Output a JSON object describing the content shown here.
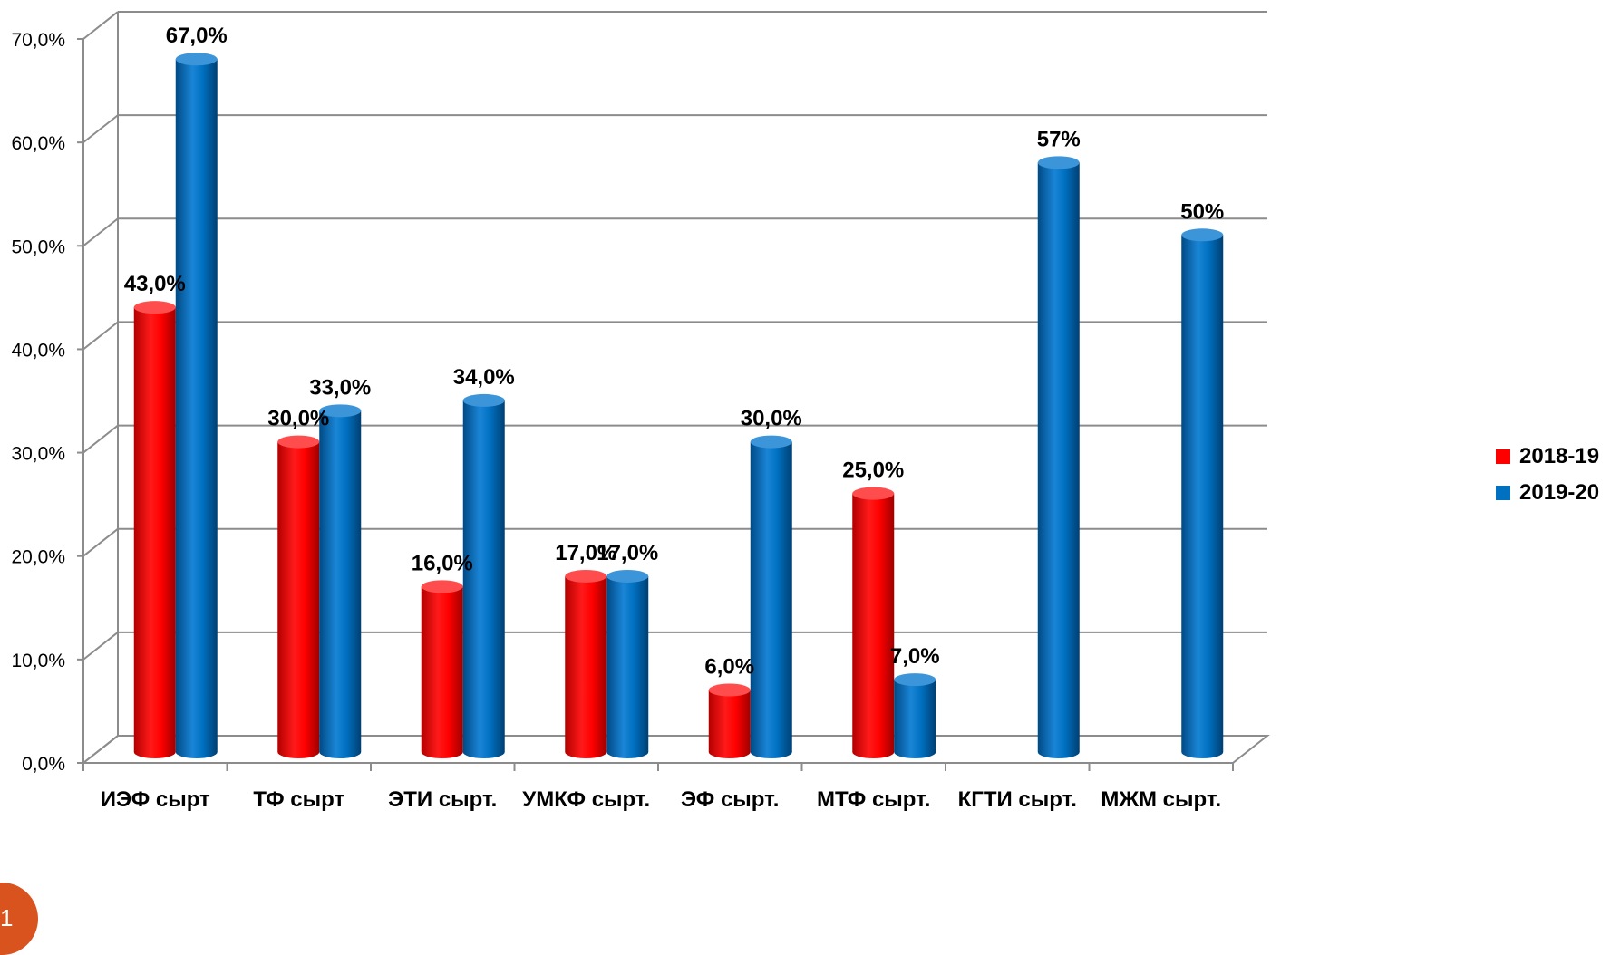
{
  "chart_data": {
    "type": "bar",
    "categories": [
      "ИЭФ сырт",
      "ТФ сырт",
      "ЭТИ сырт.",
      "УМКФ сырт.",
      "ЭФ сырт.",
      "МТФ сырт.",
      "КГТИ сырт.",
      "МЖМ сырт."
    ],
    "series": [
      {
        "name": "2018-19",
        "color": "#ff0000",
        "values": [
          43.0,
          30.0,
          16.0,
          17.0,
          6.0,
          25.0,
          null,
          null
        ],
        "labels": [
          "43,0%",
          "30,0%",
          "16,0%",
          "17,0%",
          "6,0%",
          "25,0%",
          "",
          ""
        ]
      },
      {
        "name": "2019-20",
        "color": "#0070c0",
        "values": [
          67.0,
          33.0,
          34.0,
          17.0,
          30.0,
          7.0,
          57.0,
          50.0
        ],
        "labels": [
          "67,0%",
          "33,0%",
          "34,0%",
          "17,0%",
          "30,0%",
          "7,0%",
          "57%",
          "50%"
        ]
      }
    ],
    "y_ticks": [
      "0,0%",
      "10,0%",
      "20,0%",
      "30,0%",
      "40,0%",
      "50,0%",
      "60,0%",
      "70,0%"
    ],
    "ylim": [
      0,
      70
    ],
    "grid": true,
    "legend_position": "right",
    "title": "",
    "xlabel": "",
    "ylabel": ""
  },
  "legend": {
    "items": [
      {
        "label": "2018-19",
        "color": "#ff0000"
      },
      {
        "label": "2019-20",
        "color": "#0070c0"
      }
    ]
  },
  "page": {
    "number": "1"
  }
}
